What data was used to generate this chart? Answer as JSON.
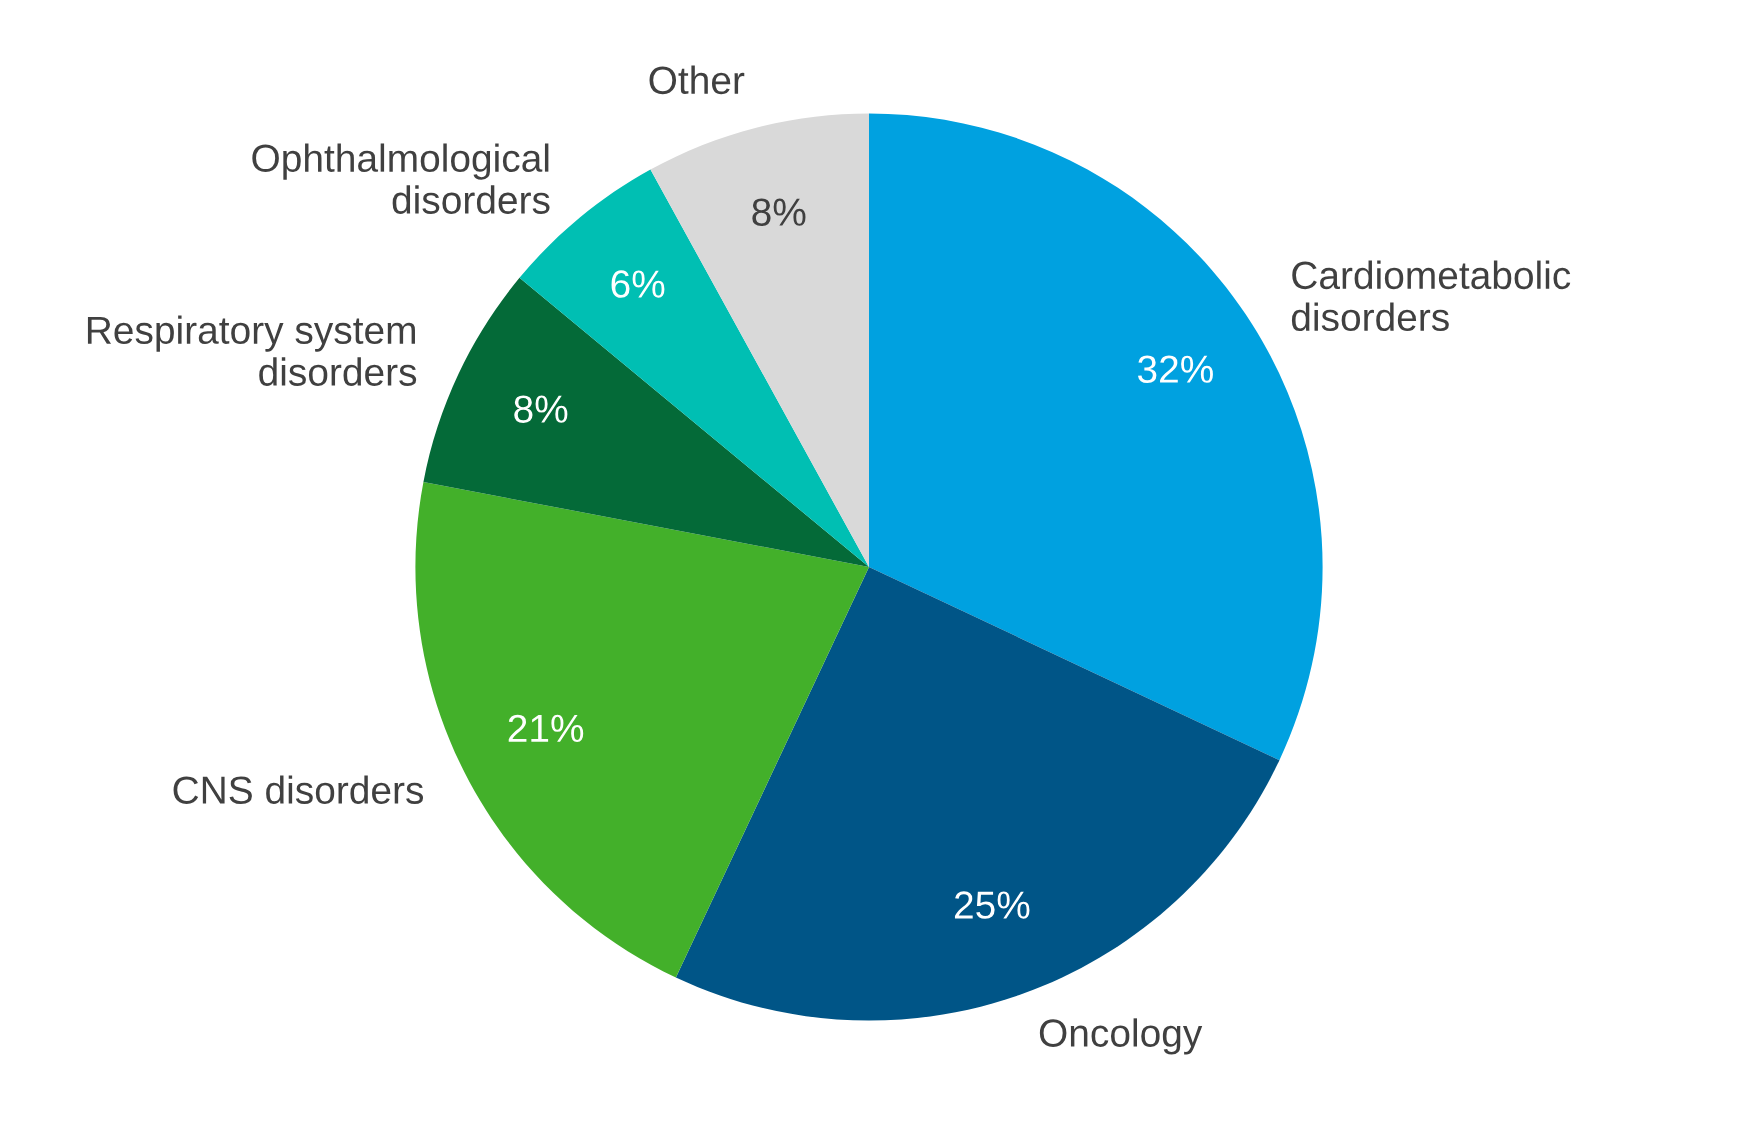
{
  "chart_data": {
    "type": "pie",
    "categories": [
      "Cardiometabolic\ndisorders",
      "Oncology",
      "CNS disorders",
      "Respiratory system\ndisorders",
      "Ophthalmological\ndisorders",
      "Other"
    ],
    "values": [
      32,
      25,
      21,
      8,
      6,
      8
    ],
    "colors": [
      "#00a1e0",
      "#005587",
      "#43b02a",
      "#046a38",
      "#00bfb3",
      "#d9d9d9"
    ],
    "value_labels": [
      "32%",
      "25%",
      "21%",
      "8%",
      "6%",
      "8%"
    ],
    "legend": false
  }
}
